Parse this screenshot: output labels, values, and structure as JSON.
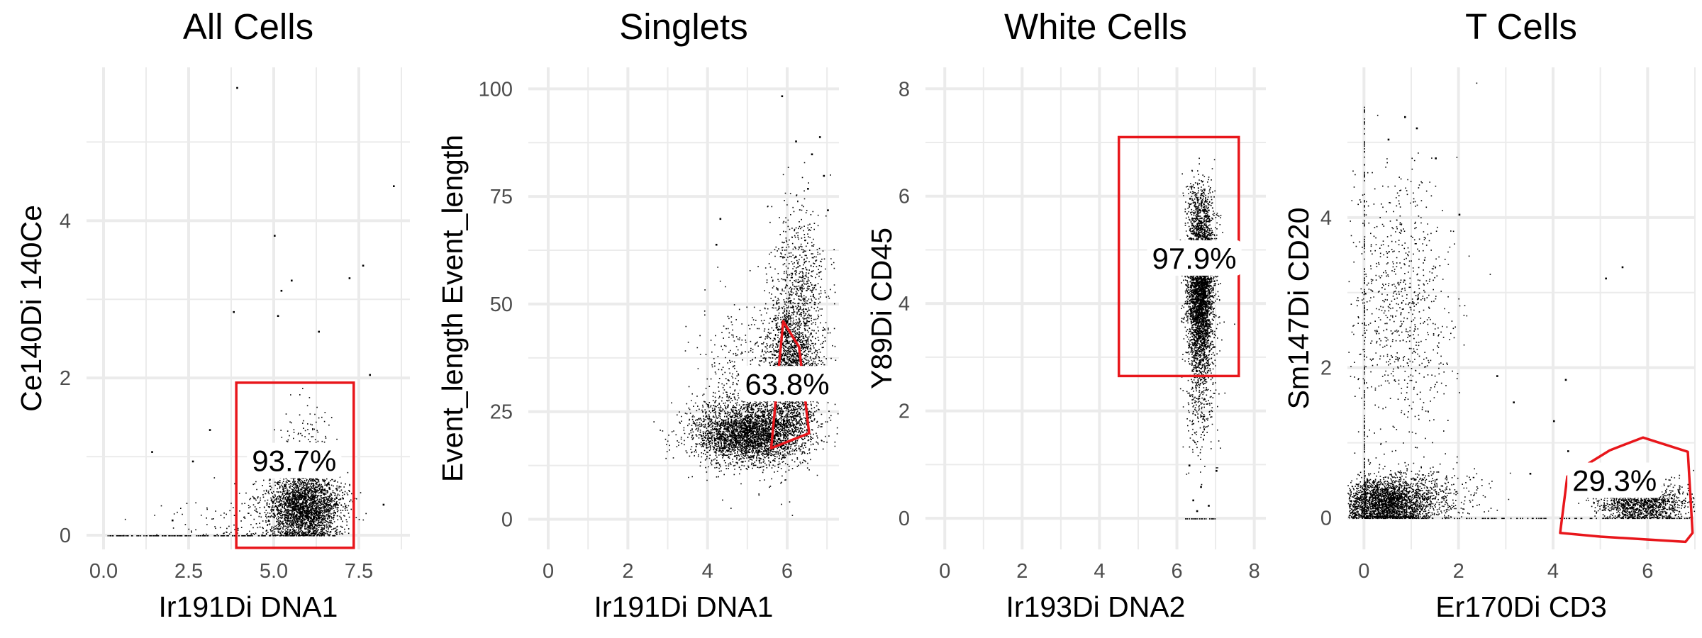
{
  "figure": {
    "background": "#ffffff",
    "panel_grid_color": "#ebebeb",
    "gate_color": "#e8161b",
    "point_color": "#000000"
  },
  "chart_data": [
    {
      "type": "scatter",
      "title": "All Cells",
      "xlabel": "Ir191Di DNA1",
      "ylabel": "Ce140Di 140Ce",
      "xlim": [
        -0.5,
        9.0
      ],
      "ylim": [
        -0.18,
        5.95
      ],
      "xticks": [
        0,
        2.5,
        5,
        7.5
      ],
      "xtick_labels": [
        "0.0",
        "2.5",
        "5.0",
        "7.5"
      ],
      "yticks": [
        0,
        2,
        4
      ],
      "ytick_labels": [
        "0",
        "2",
        "4"
      ],
      "gate": {
        "shape": "rectangle",
        "x": [
          3.9,
          7.35
        ],
        "y": [
          -0.16,
          1.94
        ]
      },
      "gate_label": {
        "text": "93.7%",
        "x": 5.6,
        "y": 0.95
      },
      "clusters": [
        {
          "cx": 5.9,
          "cy": 0.35,
          "sx": 0.55,
          "sy": 0.22,
          "n": 2600
        },
        {
          "cx": 5.9,
          "cy": 0.85,
          "sx": 0.35,
          "sy": 0.35,
          "n": 350
        },
        {
          "cx": 4.0,
          "cy": 0.2,
          "sx": 1.2,
          "sy": 0.25,
          "n": 120
        }
      ],
      "floor_line": {
        "x": [
          0.0,
          6.5
        ],
        "y": 0.0,
        "n": 180
      },
      "outliers": [
        [
          3.9,
          5.7
        ],
        [
          5.0,
          3.82
        ],
        [
          5.5,
          3.25
        ],
        [
          5.2,
          3.12
        ],
        [
          7.2,
          3.28
        ],
        [
          7.6,
          3.44
        ],
        [
          8.5,
          4.45
        ],
        [
          3.8,
          2.85
        ],
        [
          5.1,
          2.8
        ],
        [
          6.3,
          2.6
        ],
        [
          4.5,
          1.95
        ],
        [
          2.6,
          0.95
        ],
        [
          1.4,
          1.07
        ],
        [
          7.8,
          2.05
        ],
        [
          8.2,
          0.4
        ],
        [
          3.1,
          1.35
        ],
        [
          2.0,
          0.2
        ]
      ]
    },
    {
      "type": "scatter",
      "title": "Singlets",
      "xlabel": "Ir191Di DNA1",
      "ylabel": "Event_length Event_length",
      "xlim": [
        -0.5,
        7.3
      ],
      "ylim": [
        -7,
        105
      ],
      "xticks": [
        0,
        2,
        4,
        6
      ],
      "xtick_labels": [
        "0",
        "2",
        "4",
        "6"
      ],
      "yticks": [
        0,
        25,
        50,
        75,
        100
      ],
      "ytick_labels": [
        "0",
        "25",
        "50",
        "75",
        "100"
      ],
      "gate": {
        "shape": "polygon",
        "points": [
          [
            5.6,
            16.5
          ],
          [
            5.9,
            46
          ],
          [
            6.3,
            40
          ],
          [
            6.55,
            20
          ]
        ]
      },
      "gate_label": {
        "text": "63.8%",
        "x": 6.0,
        "y": 31.5
      },
      "clusters": [
        {
          "cx": 5.0,
          "cy": 20,
          "sx": 0.7,
          "sy": 3.5,
          "n": 3200
        },
        {
          "cx": 6.1,
          "cy": 35,
          "sx": 0.35,
          "sy": 9,
          "n": 2200
        },
        {
          "cx": 6.3,
          "cy": 55,
          "sx": 0.35,
          "sy": 10,
          "n": 600
        },
        {
          "cx": 4.7,
          "cy": 32,
          "sx": 0.5,
          "sy": 9,
          "n": 350
        }
      ],
      "outliers": [
        [
          5.85,
          98.5
        ],
        [
          6.8,
          89
        ],
        [
          6.6,
          85
        ],
        [
          6.9,
          80
        ],
        [
          6.5,
          77
        ],
        [
          4.3,
          70
        ],
        [
          4.2,
          64
        ],
        [
          7.0,
          72
        ],
        [
          6.2,
          88
        ]
      ]
    },
    {
      "type": "scatter",
      "title": "White Cells",
      "xlabel": "Ir193Di DNA2",
      "ylabel": "Y89Di CD45",
      "xlim": [
        -0.5,
        8.3
      ],
      "ylim": [
        -0.58,
        8.4
      ],
      "xticks": [
        0,
        2,
        4,
        6,
        8
      ],
      "xtick_labels": [
        "0",
        "2",
        "4",
        "6",
        "8"
      ],
      "yticks": [
        0,
        2,
        4,
        6,
        8
      ],
      "ytick_labels": [
        "0",
        "2",
        "4",
        "6",
        "8"
      ],
      "gate": {
        "shape": "rectangle",
        "x": [
          4.5,
          7.6
        ],
        "y": [
          2.65,
          7.1
        ]
      },
      "gate_label": {
        "text": "97.9%",
        "x": 6.45,
        "y": 4.85
      },
      "clusters": [
        {
          "cx": 6.6,
          "cy": 4.2,
          "sx": 0.17,
          "sy": 0.75,
          "n": 3600
        },
        {
          "cx": 6.6,
          "cy": 2.2,
          "sx": 0.2,
          "sy": 0.6,
          "n": 250
        },
        {
          "cx": 6.6,
          "cy": 5.6,
          "sx": 0.2,
          "sy": 0.35,
          "n": 400
        }
      ],
      "floor_line": {
        "x": [
          6.2,
          7.0
        ],
        "y": 0.0,
        "n": 25
      },
      "outliers": [
        [
          6.4,
          0.35
        ],
        [
          6.8,
          0.25
        ],
        [
          6.6,
          0.6
        ],
        [
          7.0,
          0.9
        ],
        [
          6.3,
          1.0
        ],
        [
          6.5,
          0.15
        ]
      ]
    },
    {
      "type": "scatter",
      "title": "T Cells",
      "xlabel": "Er170Di CD3",
      "ylabel": "Sm147Di CD20",
      "xlim": [
        -0.35,
        7.0
      ],
      "ylim": [
        -0.42,
        6.0
      ],
      "xticks": [
        0,
        2,
        4,
        6
      ],
      "xtick_labels": [
        "0",
        "2",
        "4",
        "6"
      ],
      "yticks": [
        0,
        2,
        4
      ],
      "ytick_labels": [
        "0",
        "2",
        "4"
      ],
      "gate": {
        "shape": "polygon",
        "points": [
          [
            4.15,
            -0.2
          ],
          [
            4.3,
            0.55
          ],
          [
            5.2,
            0.9
          ],
          [
            5.9,
            1.07
          ],
          [
            6.85,
            0.88
          ],
          [
            6.95,
            -0.2
          ],
          [
            6.8,
            -0.32
          ],
          [
            5.0,
            -0.25
          ]
        ]
      },
      "gate_label": {
        "text": "29.3%",
        "x": 5.3,
        "y": 0.5
      },
      "clusters": [
        {
          "cx": 0.45,
          "cy": 0.2,
          "sx": 0.5,
          "sy": 0.17,
          "n": 2600
        },
        {
          "cx": 0.8,
          "cy": 2.8,
          "sx": 0.55,
          "sy": 0.9,
          "n": 800
        },
        {
          "cx": 5.9,
          "cy": 0.2,
          "sx": 0.45,
          "sy": 0.13,
          "n": 1400
        },
        {
          "cx": 1.5,
          "cy": 0.35,
          "sx": 0.6,
          "sy": 0.2,
          "n": 300
        }
      ],
      "floor_line": {
        "x": [
          0.0,
          6.9
        ],
        "y": 0.0,
        "n": 120
      },
      "vline": {
        "x": 0.0,
        "y": [
          0.0,
          5.5
        ],
        "n": 220
      },
      "outliers": [
        [
          0.5,
          5.05
        ],
        [
          0.85,
          5.35
        ],
        [
          1.1,
          5.2
        ],
        [
          1.5,
          4.8
        ],
        [
          2.0,
          4.05
        ],
        [
          2.8,
          1.9
        ],
        [
          3.15,
          1.55
        ],
        [
          4.0,
          1.3
        ],
        [
          4.25,
          1.85
        ],
        [
          5.1,
          3.2
        ],
        [
          5.45,
          3.35
        ],
        [
          4.3,
          0.9
        ],
        [
          3.5,
          0.6
        ]
      ]
    }
  ]
}
